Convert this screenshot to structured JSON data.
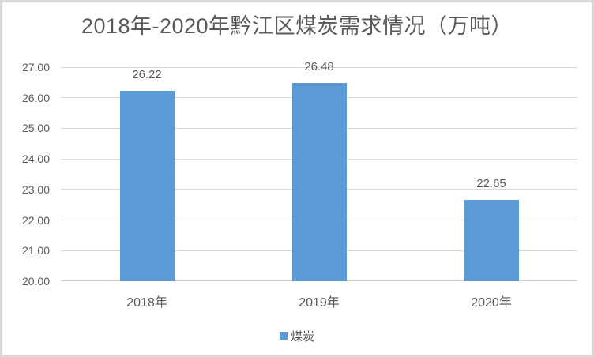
{
  "chart_data": {
    "type": "bar",
    "title": "2018年-2020年黔江区煤炭需求情况（万吨）",
    "categories": [
      "2018年",
      "2019年",
      "2020年"
    ],
    "series": [
      {
        "name": "煤炭",
        "values": [
          26.22,
          26.48,
          22.65
        ]
      }
    ],
    "data_labels": [
      "26.22",
      "26.48",
      "22.65"
    ],
    "ylim": [
      20,
      27
    ],
    "ytick_step": 1,
    "ytick_labels": [
      "20.00",
      "21.00",
      "22.00",
      "23.00",
      "24.00",
      "25.00",
      "26.00",
      "27.00"
    ],
    "xlabel": "",
    "ylabel": "",
    "grid": true,
    "legend": {
      "position": "bottom",
      "entries": [
        {
          "label": "煤炭",
          "color": "#5B9BD5"
        }
      ]
    },
    "colors": {
      "bar": "#5B9BD5",
      "text": "#595959",
      "gridline": "#D9D9D9",
      "axis_line": "#CFCFCF",
      "frame_border": "#D9D9D9",
      "background": "#FFFFFF"
    }
  }
}
